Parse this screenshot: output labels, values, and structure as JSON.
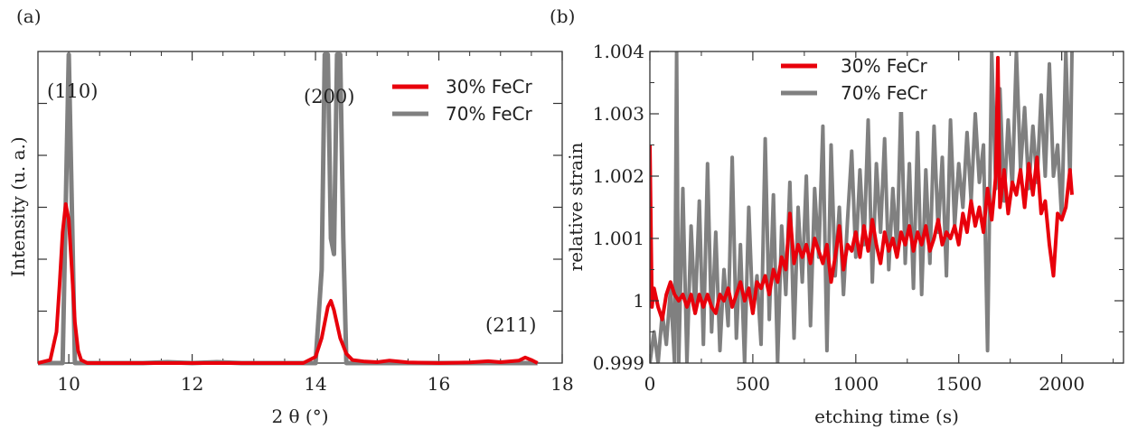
{
  "colors": {
    "red": "#e8000b",
    "gray": "#808080",
    "axis": "#333333"
  },
  "chart_data": [
    {
      "panel_label": "(a)",
      "type": "line",
      "xlabel": "2 θ  (°)",
      "ylabel": "Intensity (u. a.)",
      "xlim": [
        9.5,
        18
      ],
      "ylim": [
        0,
        1
      ],
      "xticks": [
        "10",
        "12",
        "14",
        "16",
        "18"
      ],
      "annotations": [
        {
          "text": "(110)",
          "x": 9.95,
          "y": 0.94
        },
        {
          "text": "(200)",
          "x": 14.2,
          "y": 0.88
        },
        {
          "text": "(211)",
          "x": 17.1,
          "y": 0.13
        }
      ],
      "series": [
        {
          "name": "30% FeCr",
          "color": "#e8000b",
          "x": [
            9.5,
            9.7,
            9.8,
            9.85,
            9.9,
            9.95,
            10.0,
            10.05,
            10.1,
            10.15,
            10.2,
            10.3,
            10.5,
            11.0,
            12.0,
            13.0,
            13.8,
            14.0,
            14.1,
            14.2,
            14.25,
            14.3,
            14.4,
            14.5,
            14.6,
            14.8,
            15.0,
            15.2,
            15.5,
            16.0,
            16.5,
            16.8,
            17.0,
            17.3,
            17.4,
            17.5,
            17.6
          ],
          "y": [
            0.0,
            0.01,
            0.1,
            0.25,
            0.42,
            0.51,
            0.46,
            0.3,
            0.13,
            0.04,
            0.01,
            0.0,
            0.0,
            0.0,
            0.0,
            0.0,
            0.0,
            0.02,
            0.08,
            0.18,
            0.2,
            0.17,
            0.08,
            0.03,
            0.01,
            0.005,
            0.003,
            0.008,
            0.002,
            0.0,
            0.002,
            0.006,
            0.003,
            0.008,
            0.018,
            0.01,
            0.0
          ]
        },
        {
          "name": "70% FeCr",
          "color": "#808080",
          "x": [
            9.5,
            9.9,
            9.95,
            10.0,
            10.05,
            10.1,
            11.2,
            11.6,
            12.0,
            12.4,
            12.8,
            13.2,
            14.0,
            14.1,
            14.15,
            14.2,
            14.25,
            14.3,
            14.35,
            14.4,
            14.45,
            14.5,
            15.0,
            16.0,
            17.0,
            17.6
          ],
          "y": [
            0.0,
            0.0,
            0.5,
            0.99,
            0.5,
            0.0,
            0.0,
            0.003,
            0.0,
            0.003,
            0.0,
            0.0,
            0.0,
            0.3,
            0.99,
            0.99,
            0.4,
            0.35,
            0.99,
            0.99,
            0.4,
            0.0,
            0.0,
            0.0,
            0.0,
            0.0
          ]
        }
      ]
    },
    {
      "panel_label": "(b)",
      "type": "line",
      "xlabel": "etching time (s)",
      "ylabel": "relative strain",
      "xlim": [
        0,
        2300
      ],
      "ylim": [
        0.999,
        1.004
      ],
      "xticks": [
        "0",
        "500",
        "1000",
        "1500",
        "2000"
      ],
      "yticks": [
        "0.999",
        "1",
        "1.001",
        "1.002",
        "1.003",
        "1.004"
      ],
      "series": [
        {
          "name": "30% FeCr",
          "color": "#e8000b",
          "x": [
            0,
            10,
            20,
            40,
            60,
            80,
            100,
            120,
            140,
            160,
            180,
            200,
            220,
            240,
            260,
            280,
            300,
            320,
            340,
            360,
            380,
            400,
            420,
            440,
            460,
            480,
            500,
            520,
            540,
            560,
            580,
            600,
            620,
            640,
            660,
            680,
            700,
            720,
            740,
            760,
            780,
            800,
            820,
            840,
            860,
            880,
            900,
            920,
            940,
            960,
            980,
            1000,
            1020,
            1040,
            1060,
            1080,
            1100,
            1120,
            1140,
            1160,
            1180,
            1200,
            1220,
            1240,
            1260,
            1280,
            1300,
            1320,
            1340,
            1360,
            1380,
            1400,
            1420,
            1440,
            1460,
            1480,
            1500,
            1520,
            1540,
            1560,
            1580,
            1600,
            1620,
            1640,
            1660,
            1680,
            1690,
            1700,
            1720,
            1740,
            1760,
            1780,
            1800,
            1820,
            1840,
            1860,
            1880,
            1900,
            1920,
            1940,
            1960,
            1980,
            2000,
            2020,
            2040,
            2050
          ],
          "y": [
            1.0025,
            0.9999,
            1.0002,
            0.9999,
            0.9997,
            1.0001,
            1.0003,
            1.0001,
            1.0,
            1.0001,
            0.9999,
            1.0001,
            0.9998,
            1.0001,
            0.9999,
            1.0001,
            0.9999,
            0.9998,
            1.0001,
            1.0,
            1.0002,
            0.9999,
            1.0001,
            1.0003,
            1.0,
            1.0002,
            0.9998,
            1.0003,
            1.0002,
            1.0004,
            1.0001,
            1.0005,
            1.0003,
            1.0007,
            1.0005,
            1.0014,
            1.0006,
            1.0009,
            1.0007,
            1.0009,
            1.0006,
            1.001,
            1.0008,
            1.0006,
            1.0009,
            1.0003,
            1.0007,
            1.0012,
            1.0005,
            1.0009,
            1.0008,
            1.0011,
            1.0007,
            1.0012,
            1.0008,
            1.0013,
            1.0009,
            1.0006,
            1.0011,
            1.0008,
            1.001,
            1.0007,
            1.0011,
            1.0009,
            1.0012,
            1.0008,
            1.0011,
            1.0009,
            1.0012,
            1.0008,
            1.001,
            1.0013,
            1.0009,
            1.0011,
            1.001,
            1.0012,
            1.0009,
            1.0014,
            1.0011,
            1.0016,
            1.0012,
            1.0015,
            1.0011,
            1.0018,
            1.0013,
            1.002,
            1.0039,
            1.0015,
            1.0021,
            1.0014,
            1.0019,
            1.0017,
            1.0021,
            1.0015,
            1.0022,
            1.0017,
            1.0023,
            1.0014,
            1.0016,
            1.0009,
            1.0004,
            1.0014,
            1.0013,
            1.0015,
            1.0021,
            1.0017
          ]
        },
        {
          "name": "70% FeCr",
          "color": "#808080",
          "x": [
            0,
            20,
            40,
            60,
            80,
            100,
            120,
            130,
            140,
            160,
            180,
            200,
            220,
            240,
            260,
            280,
            300,
            320,
            340,
            360,
            380,
            400,
            420,
            440,
            460,
            480,
            500,
            520,
            540,
            560,
            580,
            600,
            620,
            640,
            660,
            680,
            700,
            720,
            740,
            760,
            780,
            800,
            820,
            840,
            860,
            880,
            900,
            920,
            940,
            960,
            980,
            1000,
            1020,
            1040,
            1060,
            1080,
            1100,
            1120,
            1140,
            1160,
            1180,
            1200,
            1220,
            1240,
            1260,
            1280,
            1300,
            1320,
            1340,
            1360,
            1380,
            1400,
            1420,
            1440,
            1460,
            1480,
            1500,
            1520,
            1540,
            1560,
            1580,
            1600,
            1620,
            1640,
            1660,
            1680,
            1700,
            1720,
            1740,
            1760,
            1780,
            1800,
            1820,
            1840,
            1860,
            1880,
            1900,
            1920,
            1940,
            1960,
            1980,
            2000,
            2020,
            2040,
            2050
          ],
          "y": [
            0.999,
            0.9995,
            0.999,
            0.9998,
            0.9993,
            1.0002,
            0.999,
            1.004,
            0.999,
            1.0018,
            0.999,
            1.0012,
            0.9998,
            1.0016,
            0.9993,
            1.0022,
            0.9995,
            1.0011,
            0.9992,
            1.0005,
            0.9996,
            1.0023,
            0.9994,
            1.0009,
            0.999,
            1.0015,
            0.9998,
            1.0004,
            0.9993,
            1.0026,
            0.9997,
            1.0017,
            0.999,
            1.0012,
            1.0001,
            1.0019,
            0.9994,
            1.0015,
            1.0003,
            1.002,
            0.9996,
            1.0018,
            1.0007,
            1.0028,
            0.9992,
            1.0025,
            1.0004,
            1.0015,
            1.0001,
            1.0013,
            1.0024,
            1.0007,
            1.0021,
            1.0009,
            1.0029,
            1.0003,
            1.0022,
            1.0011,
            1.0026,
            1.0005,
            1.0018,
            1.0008,
            1.0032,
            1.0006,
            1.0022,
            1.0002,
            1.0027,
            1.0001,
            1.0021,
            1.0006,
            1.0028,
            1.0011,
            1.0023,
            1.0004,
            1.0029,
            1.0012,
            1.0022,
            1.0015,
            1.0027,
            1.0016,
            1.003,
            1.0019,
            1.0025,
            0.9992,
            1.004,
            1.0018,
            1.0034,
            1.0016,
            1.0029,
            1.0018,
            1.004,
            1.0021,
            1.0031,
            1.0018,
            1.0028,
            1.0019,
            1.0033,
            1.002,
            1.0038,
            1.002,
            1.0025,
            1.0013,
            1.004,
            1.0019,
            1.004
          ]
        }
      ]
    }
  ]
}
